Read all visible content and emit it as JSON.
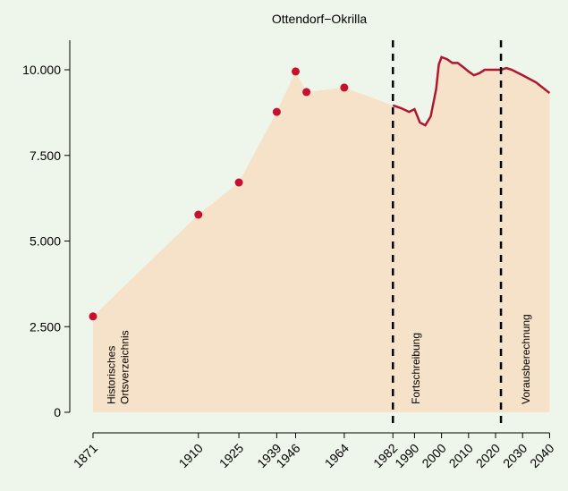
{
  "chart_data": {
    "type": "area",
    "title": "Ottendorf−Okrilla",
    "series": [
      {
        "color": "#c8102e",
        "x": [
          1871,
          1910,
          1925,
          1939,
          1946,
          1950,
          1964
        ],
        "values": [
          2800,
          5770,
          6710,
          8770,
          9950,
          9350,
          9480
        ]
      },
      {
        "color": "#b0172f",
        "x": [
          1982,
          1985,
          1988,
          1990,
          1992,
          1994,
          1996,
          1998,
          1999,
          2000,
          2002,
          2004,
          2006,
          2008,
          2010,
          2012,
          2014,
          2016,
          2018,
          2020,
          2022,
          2024,
          2026,
          2030,
          2035,
          2040
        ],
        "values": [
          8960,
          8880,
          8770,
          8850,
          8460,
          8380,
          8640,
          9430,
          10160,
          10370,
          10310,
          10200,
          10200,
          10080,
          9950,
          9840,
          9900,
          10000,
          10000,
          10000,
          10000,
          10050,
          10000,
          9840,
          9630,
          9320
        ]
      }
    ],
    "area_color": "#f5e2c9",
    "vlines": [
      1982,
      2022
    ],
    "annotations": [
      [
        "Historisches",
        "Ortsverzeichnis"
      ],
      [
        "Fortschreibung"
      ],
      [
        "Vorausberechnung"
      ]
    ],
    "xlim": [
      1862.4,
      2043.5
    ],
    "xticks": [
      1871,
      1910,
      1925,
      1939,
      1946,
      1964,
      1982,
      1990,
      2000,
      2010,
      2020,
      2030,
      2040
    ],
    "ylim": [
      -496,
      10862
    ],
    "yticks": [
      0,
      {
        "value": 2500,
        "label": "2.500"
      },
      {
        "value": 5000,
        "label": "5.000"
      },
      {
        "value": 7500,
        "label": "7.500"
      },
      {
        "value": 10000,
        "label": "10.000"
      }
    ]
  }
}
